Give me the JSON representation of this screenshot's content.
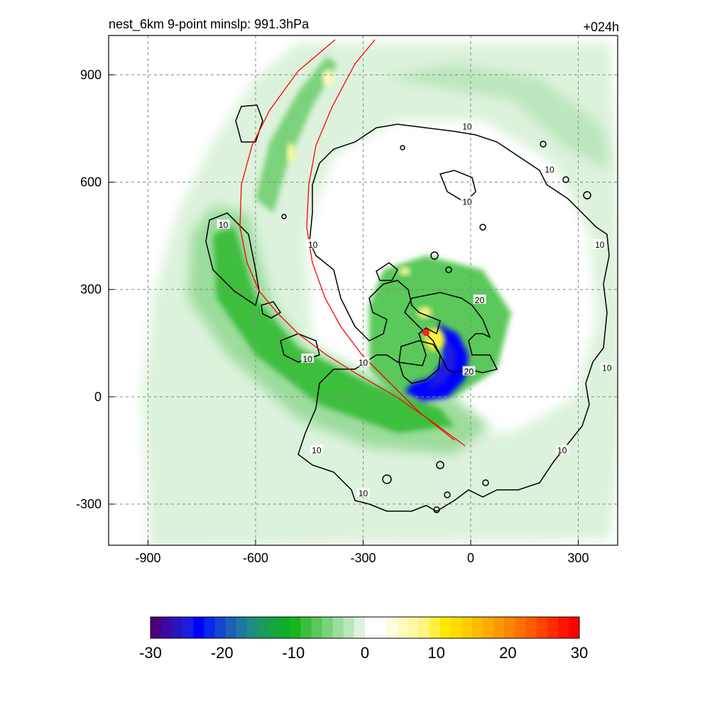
{
  "chart_data": {
    "type": "heatmap",
    "title_left": "nest_6km  9-point minslp: 991.3hPa",
    "title_right": "+024h",
    "xlabel": "",
    "ylabel": "",
    "xlim": [
      -1010,
      410
    ],
    "ylim": [
      -415,
      1010
    ],
    "x_ticks": [
      -900,
      -600,
      -300,
      0,
      300
    ],
    "x_tick_labels": [
      "-900",
      "-600",
      "-300",
      "0",
      "300"
    ],
    "y_ticks": [
      -300,
      0,
      300,
      600,
      900
    ],
    "y_tick_labels": [
      "-300",
      "0",
      "300",
      "600",
      "900"
    ],
    "grid": true,
    "grid_style": "dashed",
    "colorbar": {
      "min": -30,
      "max": 30,
      "ticks": [
        -30,
        -20,
        -10,
        0,
        10,
        20,
        30
      ],
      "tick_labels": [
        "-30",
        "-20",
        "-10",
        "0",
        "10",
        "20",
        "30"
      ],
      "colors": [
        "#4b0082",
        "#3b0aa0",
        "#2a14c0",
        "#1a1ee0",
        "#0000ff",
        "#0a28e8",
        "#1446d0",
        "#1e5fb8",
        "#1f78a0",
        "#1f8c80",
        "#1a9a60",
        "#14a640",
        "#0fae28",
        "#19b41e",
        "#3cbe3c",
        "#5ac85a",
        "#7ad27a",
        "#9cdc9c",
        "#bce6bc",
        "#dcf2dc",
        "#ffffff",
        "#ffffff",
        "#fffde0",
        "#fffbc0",
        "#fff8a0",
        "#fff580",
        "#fff040",
        "#ffe800",
        "#ffdc00",
        "#ffcc00",
        "#ffbb00",
        "#ffaa00",
        "#ff9800",
        "#ff8400",
        "#ff7000",
        "#ff5c00",
        "#ff4400",
        "#ff2c00",
        "#ff1400",
        "#ff0000"
      ]
    },
    "fields": [
      {
        "name": "shaded",
        "levels": "colorbar"
      },
      {
        "name": "contour",
        "levels": [
          10,
          20
        ],
        "color": "#000000"
      },
      {
        "name": "track_a",
        "color": "#ff0000"
      },
      {
        "name": "track_b",
        "color": "#ff0000"
      }
    ],
    "contour_labels": [
      {
        "text": "10",
        "x": -690,
        "y": 480
      },
      {
        "text": "10",
        "x": -455,
        "y": 105
      },
      {
        "text": "10",
        "x": -440,
        "y": 425
      },
      {
        "text": "10",
        "x": -430,
        "y": -150
      },
      {
        "text": "10",
        "x": -300,
        "y": 95
      },
      {
        "text": "10",
        "x": -300,
        "y": -270
      },
      {
        "text": "10",
        "x": -10,
        "y": 545
      },
      {
        "text": "20",
        "x": 25,
        "y": 270
      },
      {
        "text": "20",
        "x": -5,
        "y": 70
      },
      {
        "text": "10",
        "x": -10,
        "y": 755
      },
      {
        "text": "10",
        "x": 220,
        "y": 635
      },
      {
        "text": "10",
        "x": 360,
        "y": 425
      },
      {
        "text": "10",
        "x": 380,
        "y": 80
      },
      {
        "text": "10",
        "x": 255,
        "y": -150
      }
    ],
    "center_marker": {
      "x": -125,
      "y": 180,
      "color": "#ff2020"
    }
  }
}
